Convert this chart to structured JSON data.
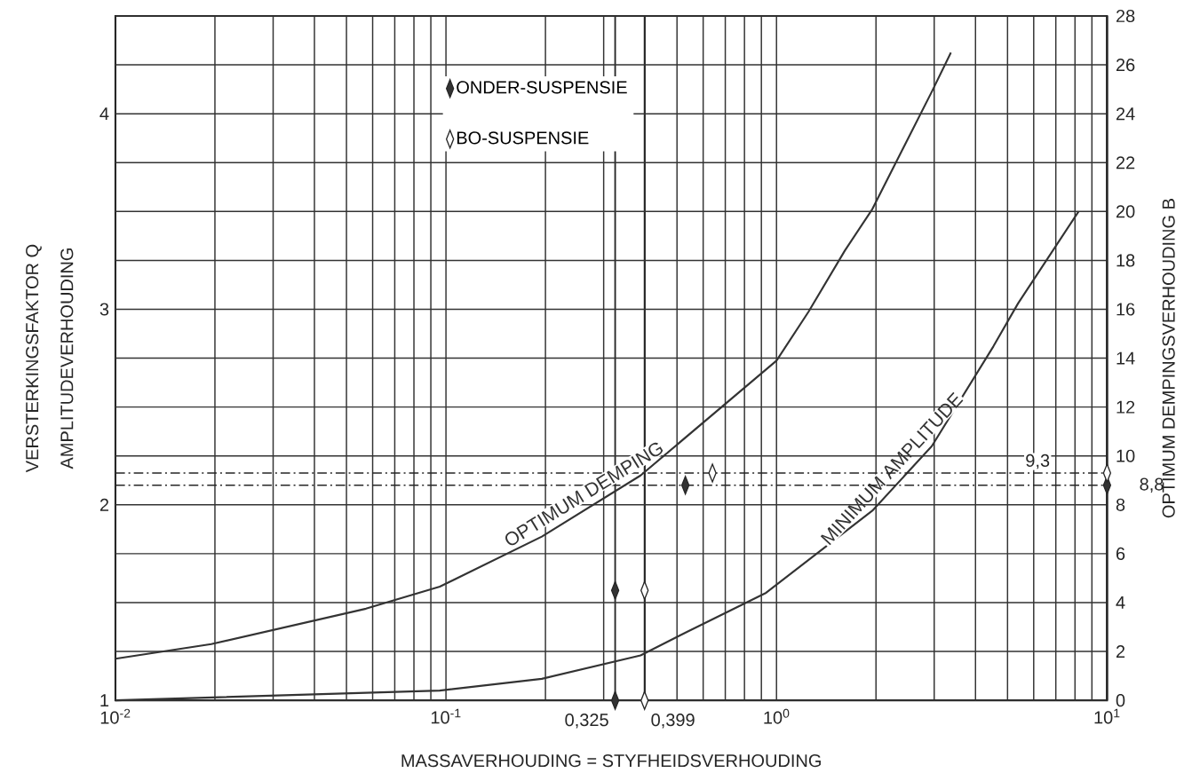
{
  "chart_data": {
    "type": "line",
    "xlabel": "MASSAVERHOUDING = STYFHEIDSVERHOUDING",
    "ylabel": "VERSTERKINGSFAKTOR Q",
    "y2label": "OPTIMUM DEMPINGSVERHOUDING B",
    "annotations": [
      "AMPLITUDEVERHOUDING"
    ],
    "log": "x",
    "grid": true,
    "legend": "top",
    "xlim": [
      0.01,
      10
    ],
    "xticks": [
      {
        "value": 0.01,
        "label": "10$^{-2}$"
      },
      {
        "value": 0.1,
        "label": "10$^{-1}$"
      },
      {
        "value": 1,
        "label": "10$^{0}$"
      },
      {
        "value": 10,
        "label": "10$^{1}$"
      }
    ],
    "ylim": [
      1,
      4.5
    ],
    "yticks": [
      1,
      2,
      3,
      4
    ],
    "y2lim": [
      0,
      28
    ],
    "y2ticks": [
      0,
      2,
      4,
      6,
      8,
      10,
      12,
      14,
      16,
      18,
      20,
      22,
      24,
      26,
      28
    ],
    "series": [
      {
        "name": "OPTIMUM DEMPING",
        "axis": "y2",
        "color": "#333333",
        "x": [
          0.01,
          0.0195,
          0.0573,
          0.0958,
          0.195,
          0.388,
          1.0,
          1.25,
          1.61,
          1.95,
          2.95,
          3.37
        ],
        "values": [
          1.7,
          2.3,
          3.75,
          4.65,
          6.7,
          9.2,
          13.9,
          15.9,
          18.4,
          20.1,
          24.9,
          26.5
        ]
      },
      {
        "name": "MINIMUM AMPLITUDE",
        "color": "#333333",
        "x": [
          0.01,
          0.0958,
          0.195,
          0.388,
          0.536,
          0.93,
          1.95,
          2.95,
          4.53,
          5.38,
          8.2
        ],
        "values": [
          1.0,
          1.05,
          1.11,
          1.23,
          1.35,
          1.55,
          1.97,
          2.3,
          2.81,
          3.03,
          3.5
        ]
      },
      {
        "name": "ONDER-SUSPENSIE",
        "type": "scatter",
        "axis": "y2",
        "marker": "diamond",
        "color": "#333333",
        "x": [
          0.325,
          0.325,
          0.53,
          10
        ],
        "values": [
          0,
          4.5,
          8.8,
          8.8
        ]
      },
      {
        "name": "BO-SUSPENSIE",
        "type": "scatter",
        "axis": "y2",
        "marker": "diamond",
        "color": "#ffffff",
        "x": [
          0.399,
          0.399,
          0.64,
          10
        ],
        "values": [
          0,
          4.5,
          9.3,
          9.3
        ]
      }
    ],
    "ref_lines": [
      {
        "axis": "x",
        "value": 0.325,
        "label": "0,325"
      },
      {
        "axis": "x",
        "value": 0.399,
        "label": "0,399"
      },
      {
        "axis": "y2",
        "value": 9.3,
        "label": "9,3",
        "line_style": "dashed"
      },
      {
        "axis": "y2",
        "value": 8.8,
        "label": "8,8",
        "line_style": "dashed"
      }
    ]
  }
}
